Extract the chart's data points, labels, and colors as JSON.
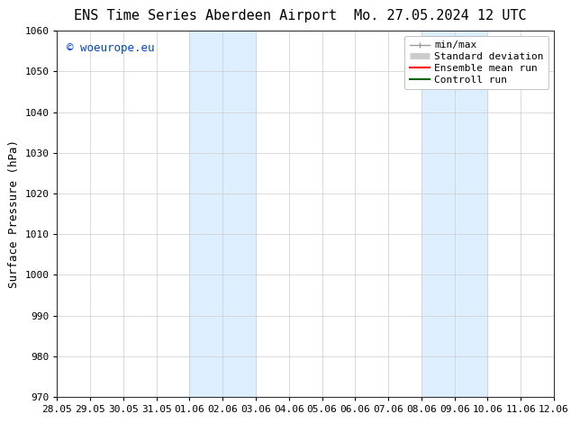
{
  "title_left": "ENS Time Series Aberdeen Airport",
  "title_right": "Mo. 27.05.2024 12 UTC",
  "ylabel": "Surface Pressure (hPa)",
  "ylim": [
    970,
    1060
  ],
  "yticks": [
    970,
    980,
    990,
    1000,
    1010,
    1020,
    1030,
    1040,
    1050,
    1060
  ],
  "xtick_labels": [
    "28.05",
    "29.05",
    "30.05",
    "31.05",
    "01.06",
    "02.06",
    "03.06",
    "04.06",
    "05.06",
    "06.06",
    "07.06",
    "08.06",
    "09.06",
    "10.06",
    "11.06",
    "12.06"
  ],
  "background_color": "#ffffff",
  "shaded_bands": [
    {
      "xstart": 4,
      "xend": 6,
      "color": "#ddeeff"
    },
    {
      "xstart": 11,
      "xend": 13,
      "color": "#ddeeff"
    }
  ],
  "watermark_text": "© woeurope.eu",
  "watermark_color": "#0044cc",
  "legend_items": [
    {
      "label": "min/max",
      "color": "#999999",
      "linestyle": "-",
      "linewidth": 1.0
    },
    {
      "label": "Standard deviation",
      "color": "#cccccc",
      "linestyle": "-",
      "linewidth": 5
    },
    {
      "label": "Ensemble mean run",
      "color": "#ff0000",
      "linestyle": "-",
      "linewidth": 1.5
    },
    {
      "label": "Controll run",
      "color": "#006600",
      "linestyle": "-",
      "linewidth": 1.5
    }
  ],
  "title_fontsize": 11,
  "axis_label_fontsize": 9,
  "tick_fontsize": 8,
  "legend_fontsize": 8,
  "watermark_fontsize": 9
}
